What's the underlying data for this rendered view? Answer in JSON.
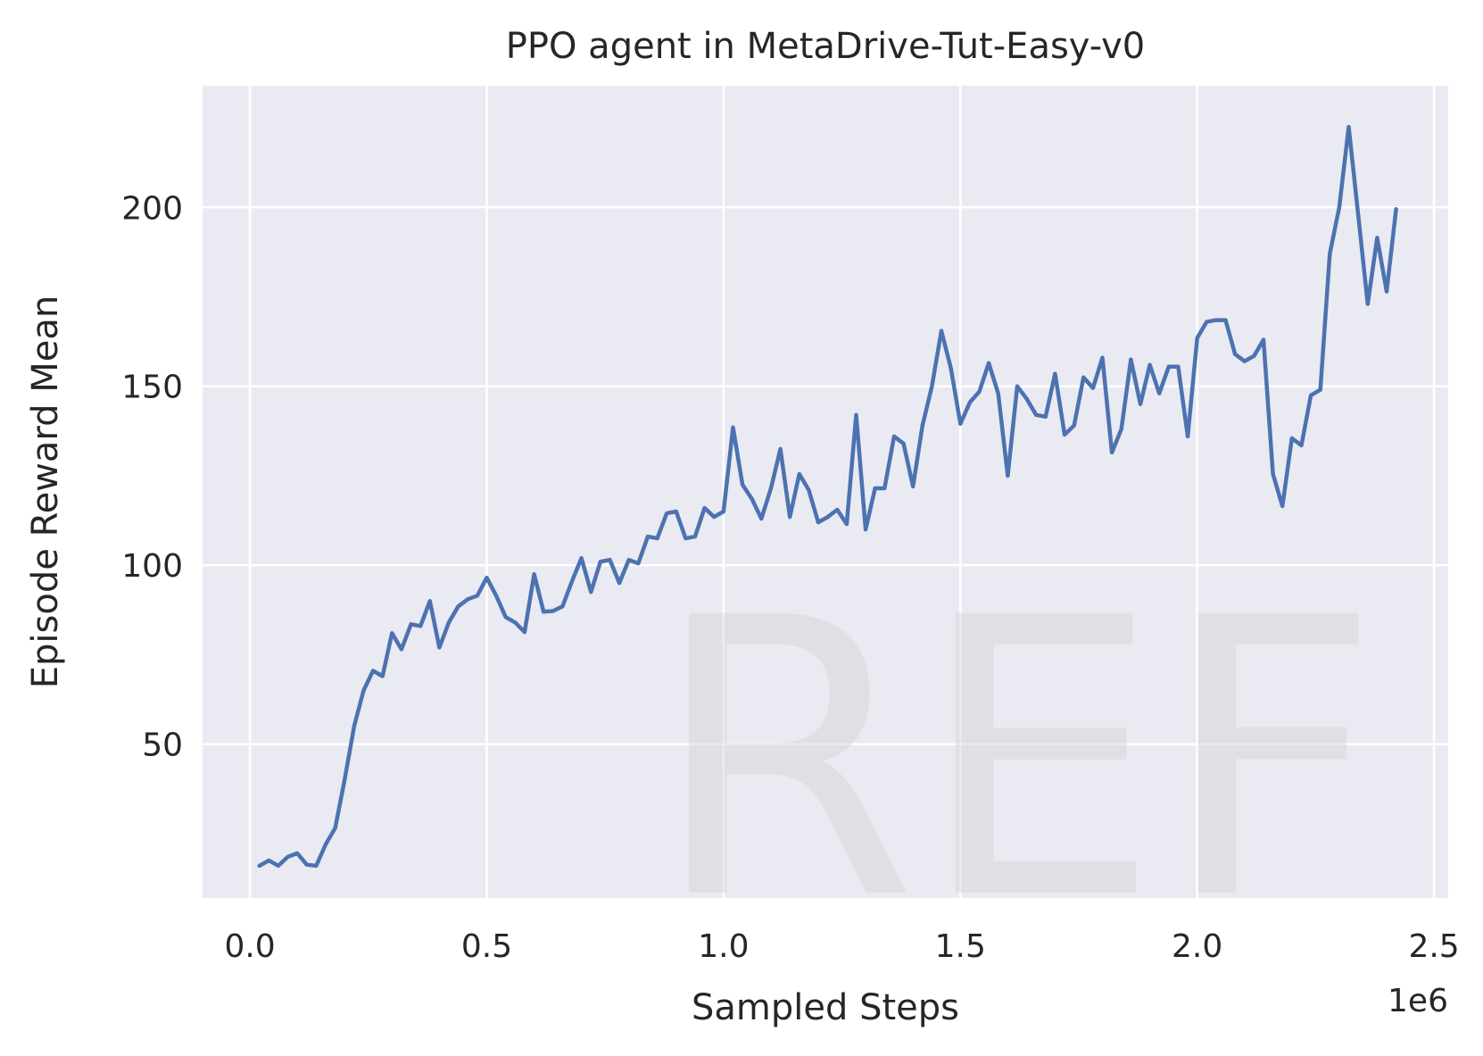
{
  "chart_data": {
    "type": "line",
    "title": "PPO agent in MetaDrive-Tut-Easy-v0",
    "xlabel": "Sampled Steps",
    "ylabel": "Episode Reward Mean",
    "x_offset_label": "1e6",
    "xlim": [
      -0.1,
      2.53
    ],
    "ylim": [
      7,
      234
    ],
    "xticks": [
      0.0,
      0.5,
      1.0,
      1.5,
      2.0,
      2.5
    ],
    "xtick_labels": [
      "0.0",
      "0.5",
      "1.0",
      "1.5",
      "2.0",
      "2.5"
    ],
    "yticks": [
      50,
      100,
      150,
      200
    ],
    "ytick_labels": [
      "50",
      "100",
      "150",
      "200"
    ],
    "grid": true,
    "background": "#eaeaf2",
    "line_color": "#4c72b0",
    "watermark": "REF",
    "series": [
      {
        "x": [
          0.02,
          0.04,
          0.06,
          0.08,
          0.1,
          0.12,
          0.14,
          0.16,
          0.18,
          0.2,
          0.22,
          0.24,
          0.26,
          0.28,
          0.3,
          0.32,
          0.34,
          0.36,
          0.38,
          0.4,
          0.42,
          0.44,
          0.46,
          0.48,
          0.5,
          0.52,
          0.54,
          0.56,
          0.58,
          0.6,
          0.62,
          0.64,
          0.66,
          0.68,
          0.7,
          0.72,
          0.74,
          0.76,
          0.78,
          0.8,
          0.82,
          0.84,
          0.86,
          0.88,
          0.9,
          0.92,
          0.94,
          0.96,
          0.98,
          1.0,
          1.02,
          1.04,
          1.06,
          1.08,
          1.1,
          1.12,
          1.14,
          1.16,
          1.18,
          1.2,
          1.22,
          1.24,
          1.26,
          1.28,
          1.3,
          1.32,
          1.34,
          1.36,
          1.38,
          1.4,
          1.42,
          1.44,
          1.46,
          1.48,
          1.5,
          1.52,
          1.54,
          1.56,
          1.58,
          1.6,
          1.62,
          1.64,
          1.66,
          1.68,
          1.7,
          1.72,
          1.74,
          1.76,
          1.78,
          1.8,
          1.82,
          1.84,
          1.86,
          1.88,
          1.9,
          1.92,
          1.94,
          1.96,
          1.98,
          2.0,
          2.02,
          2.04,
          2.06,
          2.08,
          2.1,
          2.12,
          2.14,
          2.16,
          2.18,
          2.2,
          2.22,
          2.24,
          2.26,
          2.28,
          2.3,
          2.32,
          2.34,
          2.36,
          2.38,
          2.4,
          2.42
        ],
        "y": [
          16,
          17.5,
          16,
          18.5,
          19.5,
          16.3,
          16,
          22,
          26.5,
          40,
          55,
          65,
          70.5,
          69,
          81,
          76.5,
          83.5,
          83,
          90,
          77,
          84,
          88.5,
          90.5,
          91.5,
          96.5,
          91.5,
          85.5,
          84,
          81.3,
          97.5,
          87,
          87.2,
          88.5,
          95.5,
          102,
          92.5,
          101,
          101.5,
          95,
          101.5,
          100.5,
          108,
          107.5,
          114.5,
          115,
          107.5,
          108,
          116,
          113.5,
          115,
          138.5,
          122.5,
          118.5,
          113,
          121.5,
          132.5,
          113.5,
          125.5,
          121,
          112,
          113.5,
          115.5,
          111.5,
          142,
          110,
          121.5,
          121.5,
          136,
          134,
          122,
          139,
          150,
          165.5,
          155,
          139.5,
          145.5,
          148.5,
          156.5,
          148,
          125,
          150,
          146.5,
          142,
          141.5,
          153.5,
          136.5,
          139,
          152.5,
          149.5,
          158,
          131.5,
          138,
          157.5,
          145,
          156,
          148,
          155.5,
          155.5,
          136,
          163.5,
          168,
          168.5,
          168.5,
          159,
          157,
          158.5,
          163,
          125.5,
          116.5,
          135.5,
          133.5,
          147.5,
          149,
          187,
          200,
          222.5,
          198,
          173,
          191.5,
          176.5,
          199.5
        ]
      }
    ]
  }
}
